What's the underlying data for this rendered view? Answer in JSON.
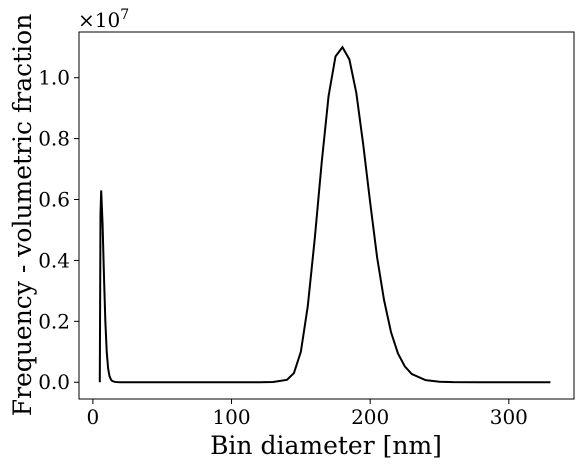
{
  "chart_data": {
    "type": "line",
    "title": "",
    "xlabel": "Bin diameter [nm]",
    "ylabel": "Frequency - volumetric fraction",
    "y_offset_label": {
      "base": "×10",
      "exponent": "7"
    },
    "xlim": [
      -10,
      347
    ],
    "ylim": [
      -0.055,
      1.15
    ],
    "y_scale_factor": 10000000,
    "xticks": [
      0,
      100,
      200,
      300
    ],
    "xtick_labels": [
      "0",
      "100",
      "200",
      "300"
    ],
    "yticks": [
      0.0,
      0.2,
      0.4,
      0.6,
      0.8,
      1.0
    ],
    "ytick_labels": [
      "0.0",
      "0.2",
      "0.4",
      "0.6",
      "0.8",
      "1.0"
    ],
    "grid": false,
    "series": [
      {
        "color": "#000000",
        "x": [
          5,
          5.5,
          6,
          7,
          8,
          9,
          10,
          11,
          12,
          13,
          14,
          16,
          18,
          20,
          30,
          50,
          80,
          100,
          120,
          130,
          140,
          145,
          150,
          155,
          160,
          165,
          170,
          175,
          180,
          185,
          190,
          195,
          200,
          205,
          210,
          215,
          220,
          225,
          230,
          240,
          250,
          260,
          280,
          300,
          330
        ],
        "y": [
          0.0,
          0.55,
          0.63,
          0.52,
          0.35,
          0.2,
          0.1,
          0.045,
          0.02,
          0.009,
          0.004,
          0.001,
          0.0003,
          0.0,
          0.0,
          0.0,
          0.0,
          0.0,
          0.0,
          0.001,
          0.008,
          0.03,
          0.1,
          0.25,
          0.47,
          0.72,
          0.94,
          1.07,
          1.1,
          1.06,
          0.95,
          0.78,
          0.59,
          0.41,
          0.27,
          0.165,
          0.095,
          0.052,
          0.027,
          0.007,
          0.0017,
          0.0004,
          0.0,
          0.0,
          0.0
        ]
      }
    ]
  }
}
